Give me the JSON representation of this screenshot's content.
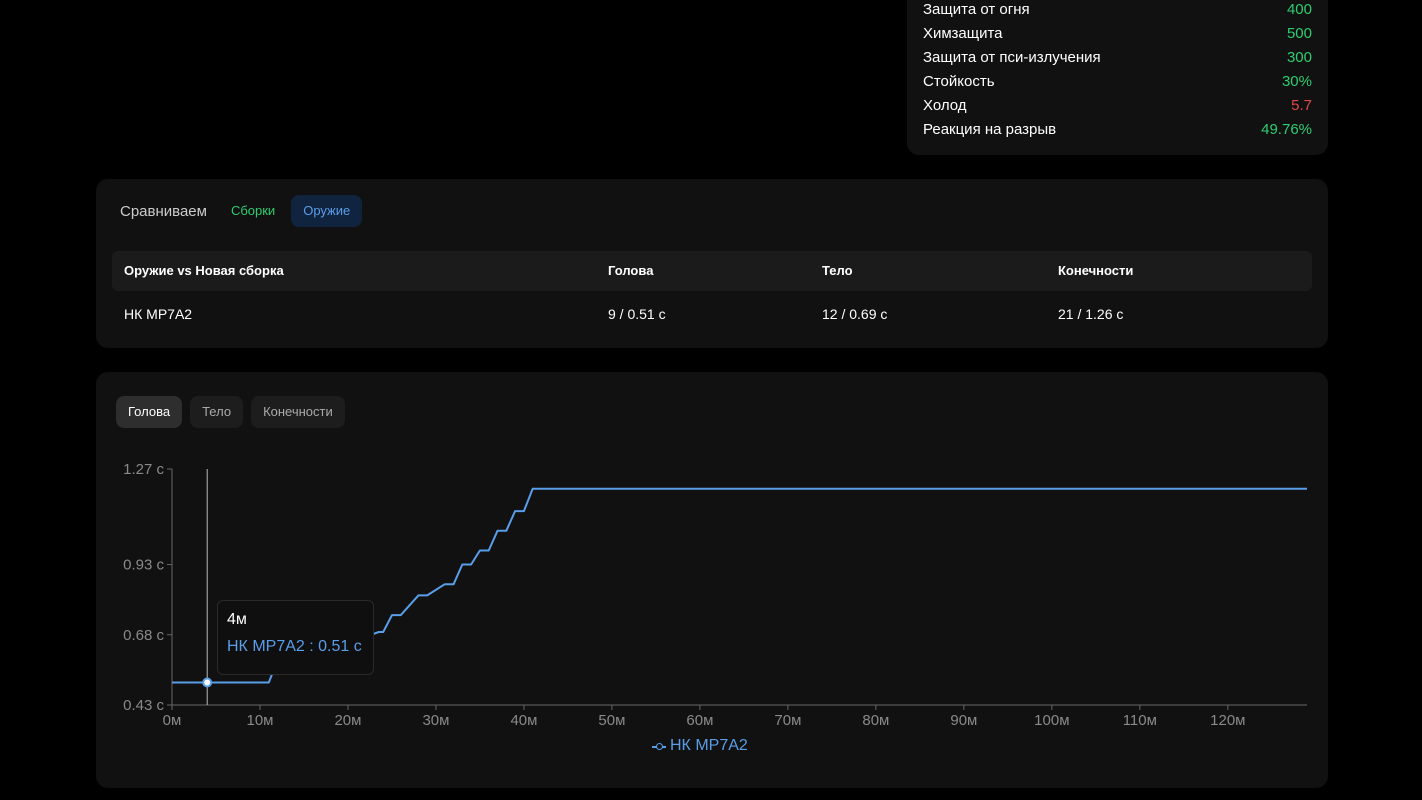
{
  "stats": [
    {
      "label": "Защита от огня",
      "value": "400",
      "color": "green"
    },
    {
      "label": "Химзащита",
      "value": "500",
      "color": "green"
    },
    {
      "label": "Защита от пси-излучения",
      "value": "300",
      "color": "green"
    },
    {
      "label": "Стойкость",
      "value": "30%",
      "color": "green"
    },
    {
      "label": "Холод",
      "value": "5.7",
      "color": "red"
    },
    {
      "label": "Реакция на разрыв",
      "value": "49.76%",
      "color": "green"
    }
  ],
  "compare": {
    "title": "Сравниваем",
    "tab_builds": "Сборки",
    "tab_weapons": "Оружие",
    "headers": [
      "Оружие vs Новая сборка",
      "Голова",
      "Тело",
      "Конечности"
    ],
    "rows": [
      [
        "НК MP7A2",
        "9 / 0.51 с",
        "12 / 0.69 с",
        "21 / 1.26 с"
      ]
    ]
  },
  "chart_tabs": [
    "Голова",
    "Тело",
    "Конечности"
  ],
  "tooltip": {
    "title": "4м",
    "value": "НК MP7A2 : 0.51 с"
  },
  "chart_data": {
    "type": "line",
    "title": "",
    "xlabel": "",
    "ylabel": "",
    "xlim": [
      0,
      129
    ],
    "ylim": [
      0.43,
      1.27
    ],
    "x_ticks": [
      0,
      10,
      20,
      30,
      40,
      50,
      60,
      70,
      80,
      90,
      100,
      110,
      120
    ],
    "x_tick_labels": [
      "0м",
      "10м",
      "20м",
      "30м",
      "40м",
      "50м",
      "60м",
      "70м",
      "80м",
      "90м",
      "100м",
      "110м",
      "120м"
    ],
    "y_ticks": [
      0.43,
      0.68,
      0.93,
      1.27
    ],
    "y_tick_labels": [
      "0.43 с",
      "0.68 с",
      "0.93 с",
      "1.27 с"
    ],
    "cursor_x": 4,
    "series": [
      {
        "name": "НК MP7A2",
        "color": "#5a9de8",
        "x": [
          0,
          11,
          11.5,
          12,
          23.5,
          24,
          25,
          26,
          28,
          29,
          31,
          32,
          33,
          34,
          35,
          36,
          37,
          38,
          39,
          40,
          41,
          41.5,
          129
        ],
        "y": [
          0.51,
          0.51,
          0.55,
          0.56,
          0.69,
          0.69,
          0.75,
          0.75,
          0.82,
          0.82,
          0.86,
          0.86,
          0.93,
          0.93,
          0.98,
          0.98,
          1.05,
          1.05,
          1.12,
          1.12,
          1.2,
          1.2,
          1.2
        ]
      }
    ],
    "legend_position": "bottom-center"
  }
}
